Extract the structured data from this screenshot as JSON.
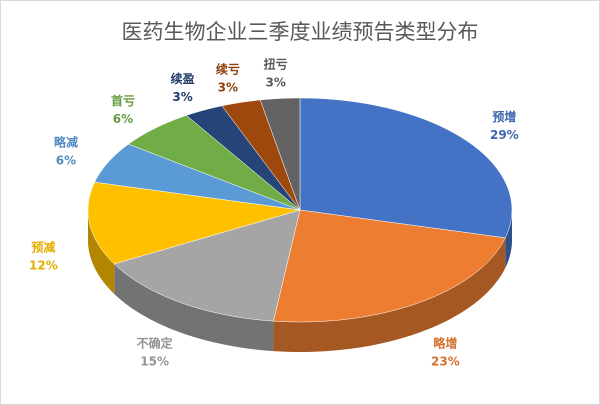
{
  "chart_data": {
    "type": "pie",
    "title": "医药生物企业三季度业绩预告类型分布",
    "categories": [
      "预增",
      "略增",
      "不确定",
      "预减",
      "略减",
      "首亏",
      "续盈",
      "续亏",
      "扭亏"
    ],
    "values": [
      29,
      23,
      15,
      12,
      6,
      6,
      3,
      3,
      3
    ],
    "value_labels": [
      "29%",
      "23%",
      "15%",
      "12%",
      "6%",
      "6%",
      "3%",
      "3%",
      "3%"
    ],
    "colors": [
      "#4472c4",
      "#ed7d31",
      "#a5a5a5",
      "#ffc000",
      "#5b9bd5",
      "#70ad47",
      "#264478",
      "#9e480e",
      "#636363"
    ]
  }
}
